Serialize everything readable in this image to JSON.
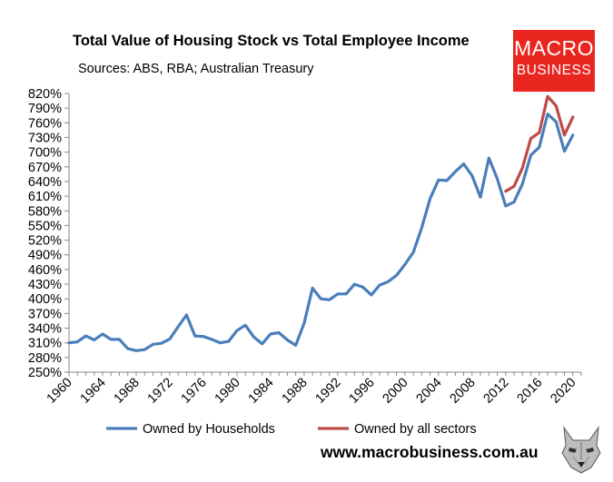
{
  "header": {
    "title": "Total Value of Housing Stock vs Total Employee Income",
    "subtitle": "Sources: ABS, RBA; Australian Treasury"
  },
  "logo": {
    "line1": "MACRO",
    "line2": "BUSINESS",
    "color": "#e8261f"
  },
  "footer": {
    "website": "www.macrobusiness.com.au",
    "emblem_icon": "wolf-icon"
  },
  "chart_data": {
    "type": "line",
    "title": "Total Value of Housing Stock vs Total Employee Income",
    "subtitle": "Sources: ABS, RBA; Australian Treasury",
    "xlabel": "",
    "ylabel": "",
    "xlim": [
      1960,
      2021
    ],
    "ylim": [
      250,
      820
    ],
    "y_ticks": [
      250,
      280,
      310,
      340,
      370,
      400,
      430,
      460,
      490,
      520,
      550,
      580,
      610,
      640,
      670,
      700,
      730,
      760,
      790,
      820
    ],
    "x_ticks": [
      1960,
      1964,
      1968,
      1972,
      1976,
      1980,
      1984,
      1988,
      1992,
      1996,
      2000,
      2004,
      2008,
      2012,
      2016,
      2020
    ],
    "y_tick_format": "percent",
    "grid": false,
    "legend_position": "bottom",
    "series": [
      {
        "name": "Owned by Households",
        "color": "#4a7ebb",
        "x": [
          1960,
          1961,
          1962,
          1963,
          1964,
          1965,
          1966,
          1967,
          1968,
          1969,
          1970,
          1971,
          1972,
          1973,
          1974,
          1975,
          1976,
          1977,
          1978,
          1979,
          1980,
          1981,
          1982,
          1983,
          1984,
          1985,
          1986,
          1987,
          1988,
          1989,
          1990,
          1991,
          1992,
          1993,
          1994,
          1995,
          1996,
          1997,
          1998,
          1999,
          2000,
          2001,
          2002,
          2003,
          2004,
          2005,
          2006,
          2007,
          2008,
          2009,
          2010,
          2011,
          2012,
          2013,
          2014,
          2015,
          2016,
          2017,
          2018,
          2019,
          2020,
          2021
        ],
        "values": [
          310,
          312,
          324,
          316,
          328,
          317,
          317,
          298,
          294,
          296,
          307,
          309,
          318,
          343,
          367,
          324,
          323,
          317,
          310,
          313,
          335,
          346,
          322,
          308,
          328,
          331,
          316,
          305,
          350,
          422,
          400,
          398,
          410,
          410,
          430,
          424,
          408,
          428,
          435,
          448,
          470,
          495,
          545,
          605,
          643,
          642,
          660,
          676,
          652,
          608,
          688,
          646,
          590,
          598,
          635,
          694,
          710,
          778,
          762,
          702,
          735,
          null
        ],
        "label_position": "end"
      },
      {
        "name": "Owned by all sectors",
        "color": "#be4b48",
        "x": [
          2012,
          2013,
          2014,
          2015,
          2016,
          2017,
          2018,
          2019,
          2020,
          2021
        ],
        "values": [
          620,
          630,
          668,
          728,
          740,
          814,
          795,
          735,
          772,
          null
        ]
      }
    ]
  }
}
